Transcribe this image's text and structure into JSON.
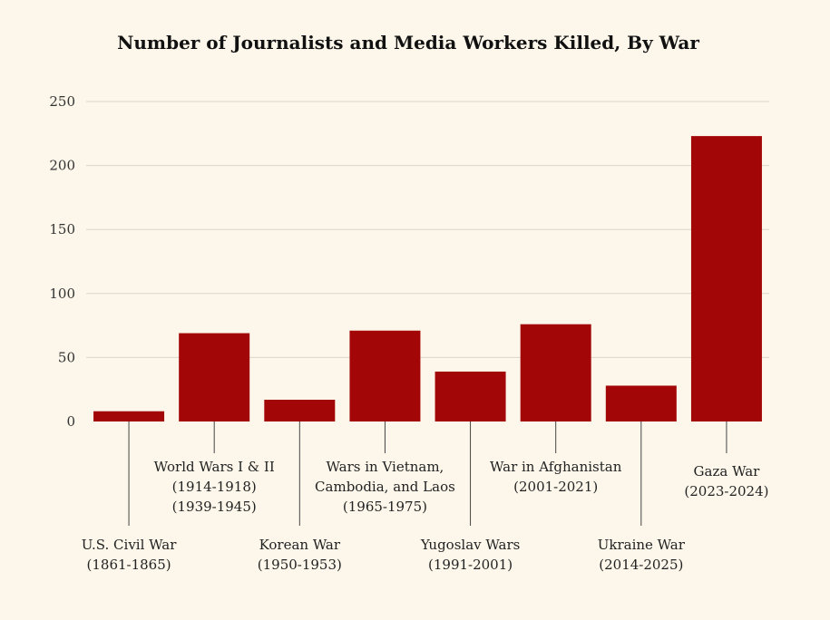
{
  "chart_data": {
    "type": "bar",
    "title": "Number of Journalists and Media Workers Killed, By War",
    "xlabel": "",
    "ylabel": "",
    "ylim": [
      0,
      250
    ],
    "yticks": [
      0,
      50,
      100,
      150,
      200,
      250
    ],
    "grid": true,
    "bar_color": "#a30606",
    "categories": [
      "U.S. Civil War (1861-1865)",
      "World Wars I & II (1914-1918) (1939-1945)",
      "Korean War (1950-1953)",
      "Wars in Vietnam, Cambodia, and Laos (1965-1975)",
      "Yugoslav Wars (1991-2001)",
      "War in Afghanistan (2001-2021)",
      "Ukraine War (2014-2025)",
      "Gaza War (2023-2024)"
    ],
    "category_label_lines": [
      [
        "U.S. Civil War",
        "(1861-1865)"
      ],
      [
        "World Wars I & II",
        "(1914-1918)",
        "(1939-1945)"
      ],
      [
        "Korean War",
        "(1950-1953)"
      ],
      [
        "Wars in Vietnam,",
        "Cambodia, and Laos",
        "(1965-1975)"
      ],
      [
        "Yugoslav Wars",
        "(1991-2001)"
      ],
      [
        "War in Afghanistan",
        "(2001-2021)"
      ],
      [
        "Ukraine War",
        "(2014-2025)"
      ],
      [
        "Gaza War",
        "(2023-2024)"
      ]
    ],
    "values": [
      8,
      69,
      17,
      71,
      39,
      76,
      28,
      223
    ]
  }
}
